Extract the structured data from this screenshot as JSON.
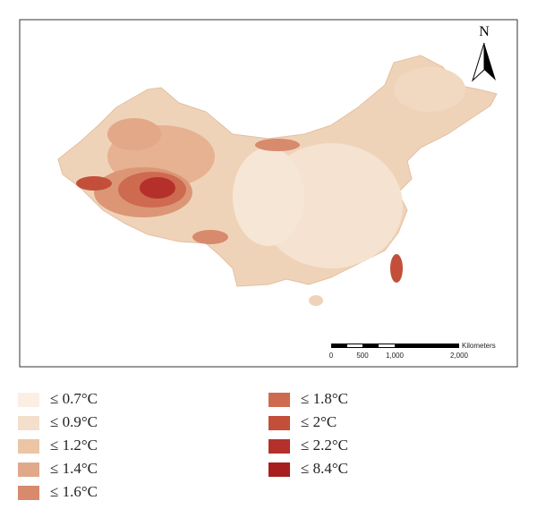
{
  "map": {
    "north_label": "N",
    "scale_bar": {
      "labels": [
        "0",
        "500",
        "1,000",
        "2,000"
      ],
      "unit": "Kilometers"
    }
  },
  "legend": [
    {
      "label": "≤ 0.7°C",
      "color": "#fbeee3"
    },
    {
      "label": "≤ 0.9°C",
      "color": "#f3dfcb"
    },
    {
      "label": "≤ 1.2°C",
      "color": "#ebc5a4"
    },
    {
      "label": "≤ 1.4°C",
      "color": "#e0a98a"
    },
    {
      "label": "≤ 1.6°C",
      "color": "#d88a6c"
    },
    {
      "label": "≤ 1.8°C",
      "color": "#cd6a50"
    },
    {
      "label": "≤ 2°C",
      "color": "#c34f3a"
    },
    {
      "label": "≤ 2.2°C",
      "color": "#b5302a"
    },
    {
      "label": "≤ 8.4°C",
      "color": "#a81d1d"
    }
  ]
}
